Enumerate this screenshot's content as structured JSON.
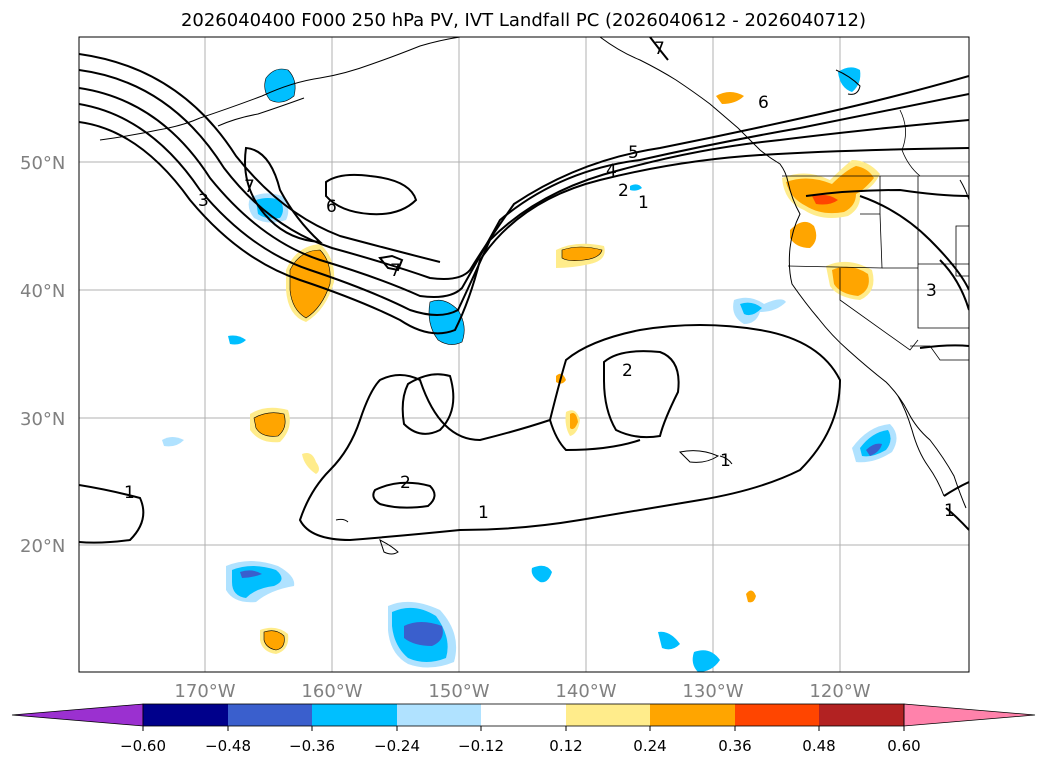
{
  "title": "2026040400 F000 250 hPa PV, IVT Landfall PC (2026040612 - 2026040712)",
  "map": {
    "lat_labels": [
      "50°N",
      "40°N",
      "30°N",
      "20°N"
    ],
    "lon_labels": [
      "170°W",
      "160°W",
      "150°W",
      "140°W",
      "130°W",
      "120°W"
    ],
    "pv_contour_labels": [
      "1",
      "2",
      "3",
      "4",
      "5",
      "6",
      "7"
    ],
    "visible_contour_labels": [
      {
        "text": "1"
      },
      {
        "text": "2"
      },
      {
        "text": "4"
      },
      {
        "text": "5"
      },
      {
        "text": "6"
      },
      {
        "text": "3"
      },
      {
        "text": "7"
      },
      {
        "text": "6"
      },
      {
        "text": "7"
      },
      {
        "text": "2"
      },
      {
        "text": "2"
      },
      {
        "text": "1"
      },
      {
        "text": "1"
      },
      {
        "text": "1"
      },
      {
        "text": "1"
      },
      {
        "text": "3"
      },
      {
        "text": "7"
      }
    ]
  },
  "colorbar": {
    "tick_labels": [
      "−0.60",
      "−0.48",
      "−0.36",
      "−0.24",
      "−0.12",
      "0.12",
      "0.24",
      "0.36",
      "0.48",
      "0.60"
    ],
    "colors": [
      "#9b30d0",
      "#00008b",
      "#3a5fcd",
      "#00bfff",
      "#b0e2ff",
      "#ffffff",
      "#ffec8b",
      "#ffa500",
      "#ff4500",
      "#b22222",
      "#ff82ab"
    ]
  }
}
